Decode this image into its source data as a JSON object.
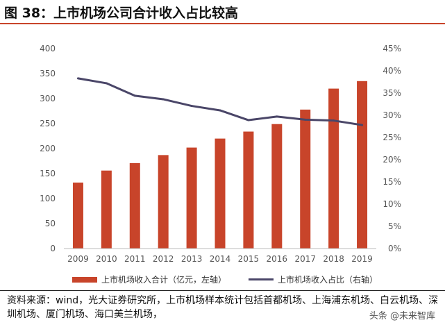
{
  "header": {
    "title": "图 38：上市机场公司合计收入占比较高"
  },
  "chart_data": {
    "type": "bar+line",
    "categories": [
      "2009",
      "2010",
      "2011",
      "2012",
      "2013",
      "2014",
      "2015",
      "2016",
      "2017",
      "2018",
      "2019"
    ],
    "series": [
      {
        "name": "上市机场收入合计（亿元，左轴）",
        "type": "bar",
        "axis": "left",
        "values": [
          132,
          156,
          171,
          187,
          202,
          220,
          234,
          249,
          278,
          320,
          335
        ]
      },
      {
        "name": "上市机场收入占比（右轴）",
        "type": "line",
        "axis": "right",
        "values": [
          0.383,
          0.372,
          0.344,
          0.336,
          0.321,
          0.311,
          0.289,
          0.297,
          0.29,
          0.288,
          0.278
        ]
      }
    ],
    "y_left": {
      "min": 0,
      "max": 400,
      "step": 50,
      "ticks": [
        "0",
        "50",
        "100",
        "150",
        "200",
        "250",
        "300",
        "350",
        "400"
      ]
    },
    "y_right": {
      "min": 0,
      "max": 0.45,
      "step": 0.05,
      "ticks": [
        "0%",
        "5%",
        "10%",
        "15%",
        "20%",
        "25%",
        "30%",
        "35%",
        "40%",
        "45%"
      ]
    },
    "grid": false,
    "legend": "bottom",
    "colors": {
      "bar": "#C8442A",
      "line": "#4A4668"
    }
  },
  "footer": {
    "source": "资料来源：wind，光大证券研究所，上市机场样本统计包括首都机场、上海浦东机场、白云机场、深圳机场、厦门机场、海口美兰机场，",
    "watermark": "头条 @未来智库"
  },
  "style": {
    "title_rule_color": "#C8442A"
  }
}
